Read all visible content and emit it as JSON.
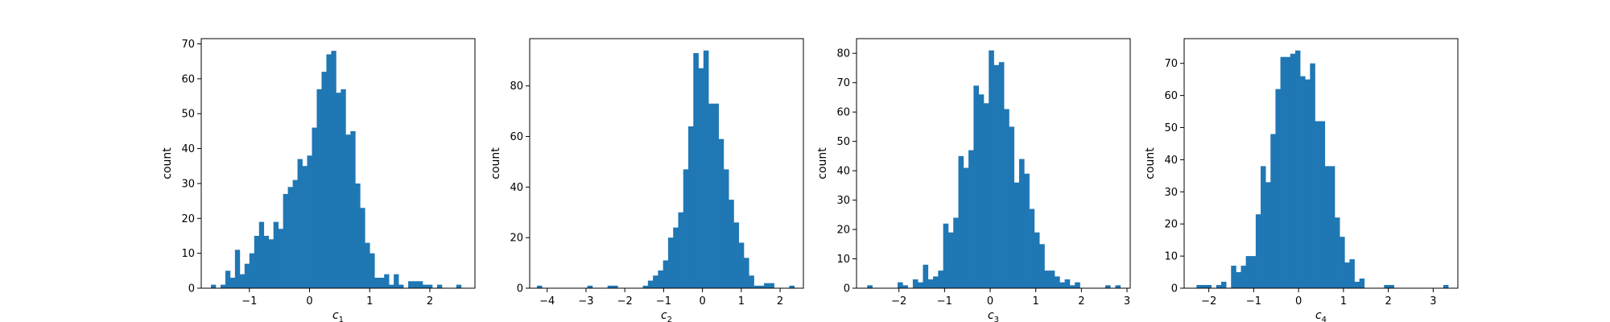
{
  "chart_data": [
    {
      "type": "bar",
      "bin_width": 0.08,
      "bin_centers": [
        -1.6,
        -1.52,
        -1.44,
        -1.36,
        -1.28,
        -1.2,
        -1.12,
        -1.04,
        -0.96,
        -0.88,
        -0.8,
        -0.72,
        -0.64,
        -0.56,
        -0.48,
        -0.4,
        -0.32,
        -0.24,
        -0.16,
        -0.08,
        0.0,
        0.08,
        0.16,
        0.24,
        0.32,
        0.4,
        0.48,
        0.56,
        0.64,
        0.72,
        0.8,
        0.88,
        0.96,
        1.04,
        1.12,
        1.2,
        1.28,
        1.36,
        1.44,
        1.52,
        1.6,
        1.68,
        1.76,
        1.84,
        1.92,
        2.0,
        2.08,
        2.16,
        2.24,
        2.32,
        2.4,
        2.48
      ],
      "values": [
        1,
        0,
        1,
        5,
        3,
        11,
        4,
        7,
        10,
        15,
        19,
        15,
        14,
        19,
        17,
        27,
        29,
        31,
        37,
        35,
        38,
        46,
        57,
        62,
        67,
        68,
        56,
        57,
        44,
        45,
        30,
        23,
        13,
        10,
        3,
        3,
        4,
        1,
        4,
        1,
        0,
        2,
        2,
        2,
        1,
        1,
        0,
        1,
        0,
        0,
        0,
        1
      ],
      "xlabel": "c",
      "xlabel_sub": "1",
      "ylabel": "count",
      "xlim": [
        -1.8,
        2.75
      ],
      "ylim": [
        0,
        71.5
      ],
      "xticks": [
        -1,
        0,
        1,
        2
      ],
      "xtick_labels": [
        "−1",
        "0",
        "1",
        "2"
      ],
      "yticks": [
        0,
        10,
        20,
        30,
        40,
        50,
        60,
        70
      ],
      "ytick_labels": [
        "0",
        "10",
        "20",
        "30",
        "40",
        "50",
        "60",
        "70"
      ],
      "color": "#1f77b4",
      "grid": false
    },
    {
      "type": "bar",
      "bin_width": 0.13,
      "bin_centers": [
        -4.2,
        -4.07,
        -3.94,
        -3.81,
        -3.68,
        -3.55,
        -3.42,
        -3.29,
        -3.16,
        -3.03,
        -2.9,
        -2.77,
        -2.64,
        -2.51,
        -2.38,
        -2.25,
        -2.12,
        -1.99,
        -1.86,
        -1.73,
        -1.6,
        -1.47,
        -1.34,
        -1.21,
        -1.08,
        -0.95,
        -0.82,
        -0.69,
        -0.56,
        -0.43,
        -0.3,
        -0.17,
        -0.04,
        0.09,
        0.22,
        0.35,
        0.48,
        0.61,
        0.74,
        0.87,
        1.0,
        1.13,
        1.26,
        1.39,
        1.52,
        1.65,
        1.78,
        1.91,
        2.04,
        2.17,
        2.3,
        2.43
      ],
      "values": [
        1,
        0,
        0,
        0,
        0,
        0,
        0,
        0,
        0,
        0,
        1,
        0,
        0,
        0,
        1,
        1,
        0,
        0,
        0,
        0,
        0,
        1,
        3,
        5,
        7,
        11,
        20,
        24,
        30,
        47,
        64,
        93,
        87,
        94,
        73,
        73,
        59,
        47,
        35,
        26,
        18,
        12,
        5,
        1,
        1,
        2,
        2,
        0,
        0,
        0,
        1,
        0
      ],
      "xlabel": "c",
      "xlabel_sub": "2",
      "ylabel": "count",
      "xlim": [
        -4.45,
        2.6
      ],
      "ylim": [
        0,
        98.7
      ],
      "xticks": [
        -4,
        -3,
        -2,
        -1,
        0,
        1,
        2
      ],
      "xtick_labels": [
        "−4",
        "−3",
        "−2",
        "−1",
        "0",
        "1",
        "2"
      ],
      "yticks": [
        0,
        20,
        40,
        60,
        80
      ],
      "ytick_labels": [
        "0",
        "20",
        "40",
        "60",
        "80"
      ],
      "color": "#1f77b4",
      "grid": false
    },
    {
      "type": "bar",
      "bin_width": 0.111,
      "bin_centers": [
        -2.64,
        -2.529,
        -2.418,
        -2.307,
        -2.196,
        -2.085,
        -1.974,
        -1.863,
        -1.752,
        -1.641,
        -1.53,
        -1.419,
        -1.308,
        -1.197,
        -1.086,
        -0.975,
        -0.864,
        -0.753,
        -0.642,
        -0.531,
        -0.42,
        -0.309,
        -0.198,
        -0.087,
        0.024,
        0.135,
        0.246,
        0.357,
        0.468,
        0.579,
        0.69,
        0.801,
        0.912,
        1.023,
        1.134,
        1.245,
        1.356,
        1.467,
        1.578,
        1.689,
        1.8,
        1.911,
        2.022,
        2.133,
        2.244,
        2.355,
        2.466,
        2.577,
        2.688,
        2.799
      ],
      "values": [
        1,
        0,
        0,
        0,
        0,
        0,
        2,
        1,
        0,
        3,
        2,
        8,
        3,
        4,
        6,
        22,
        19,
        24,
        45,
        41,
        47,
        69,
        66,
        63,
        81,
        76,
        77,
        61,
        55,
        36,
        44,
        39,
        27,
        19,
        15,
        6,
        6,
        4,
        2,
        3,
        1,
        2,
        0,
        0,
        0,
        0,
        0,
        1,
        0,
        1
      ],
      "xlabel": "c",
      "xlabel_sub": "3",
      "ylabel": "count",
      "xlim": [
        -2.93,
        3.07
      ],
      "ylim": [
        0,
        85
      ],
      "xticks": [
        -2,
        -1,
        0,
        1,
        2,
        3
      ],
      "xtick_labels": [
        "−2",
        "−1",
        "0",
        "1",
        "2",
        "3"
      ],
      "yticks": [
        0,
        10,
        20,
        30,
        40,
        50,
        60,
        70,
        80
      ],
      "ytick_labels": [
        "0",
        "10",
        "20",
        "30",
        "40",
        "50",
        "60",
        "70",
        "80"
      ],
      "color": "#1f77b4",
      "grid": false
    },
    {
      "type": "bar",
      "bin_width": 0.11,
      "bin_centers": [
        -2.22,
        -2.11,
        -2.0,
        -1.89,
        -1.78,
        -1.67,
        -1.56,
        -1.45,
        -1.34,
        -1.23,
        -1.12,
        -1.01,
        -0.9,
        -0.79,
        -0.68,
        -0.57,
        -0.46,
        -0.35,
        -0.24,
        -0.13,
        -0.02,
        0.09,
        0.2,
        0.31,
        0.42,
        0.53,
        0.64,
        0.75,
        0.86,
        0.97,
        1.08,
        1.19,
        1.3,
        1.41,
        1.52,
        1.63,
        1.74,
        1.85,
        1.96,
        2.07,
        2.18,
        2.29,
        2.4,
        2.51,
        2.62,
        2.73,
        2.84,
        2.95,
        3.06,
        3.17,
        3.28
      ],
      "values": [
        1,
        1,
        1,
        0,
        1,
        2,
        0,
        7,
        5,
        7,
        10,
        10,
        23,
        38,
        33,
        48,
        62,
        72,
        72,
        73,
        74,
        66,
        65,
        70,
        52,
        52,
        38,
        38,
        22,
        16,
        8,
        9,
        2,
        3,
        0,
        0,
        0,
        0,
        1,
        1,
        0,
        0,
        0,
        0,
        0,
        0,
        0,
        0,
        0,
        0,
        1
      ],
      "xlabel": "c",
      "xlabel_sub": "4",
      "ylabel": "count",
      "xlim": [
        -2.55,
        3.55
      ],
      "ylim": [
        0,
        77.7
      ],
      "xticks": [
        -2,
        -1,
        0,
        1,
        2,
        3
      ],
      "xtick_labels": [
        "−2",
        "−1",
        "0",
        "1",
        "2",
        "3"
      ],
      "yticks": [
        0,
        10,
        20,
        30,
        40,
        50,
        60,
        70
      ],
      "ytick_labels": [
        "0",
        "10",
        "20",
        "30",
        "40",
        "50",
        "60",
        "70"
      ],
      "color": "#1f77b4",
      "grid": false
    }
  ]
}
